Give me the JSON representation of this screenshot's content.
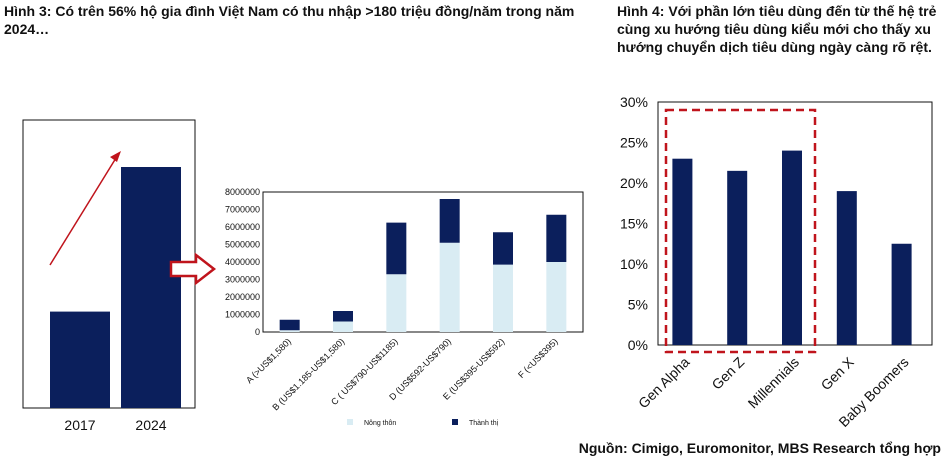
{
  "figure3": {
    "title": "Hình 3: Có trên 56% hộ gia đình Việt Nam có thu nhập >180 triệu đồng/năm trong năm 2024…"
  },
  "figure4": {
    "title": "Hình 4: Với phần lớn tiêu dùng đến từ thế hệ trẻ cùng xu hướng tiêu dùng kiểu mới cho thấy xu hướng chuyển dịch tiêu dùng ngày càng rõ rệt."
  },
  "source": "Nguồn: Cimigo, Euromonitor, MBS Research tổng hợp",
  "colors": {
    "navy": "#0b1f5c",
    "light": "#d9ecf3",
    "red": "#c0141c"
  },
  "chart_data": [
    {
      "type": "bar",
      "categories": [
        "2017",
        "2024"
      ],
      "values": [
        0.4,
        1.0
      ],
      "note_visual": "relative heights only, no axis printed; red arrow indicates growth",
      "color": "#0b1f5c"
    },
    {
      "type": "bar",
      "stacked": true,
      "categories": [
        "A (>US$1,580)",
        "B (US$1.185-US$1,580)",
        "C ( US$790-US$1185)",
        "D (US$592-US$790)",
        "E (US$395-US$592)",
        "F (<US$395)"
      ],
      "series": [
        {
          "name": "Nông thôn",
          "color": "#d9ecf3",
          "values": [
            100000,
            600000,
            3300000,
            5100000,
            3850000,
            4000000
          ]
        },
        {
          "name": "Thành thị",
          "color": "#0b1f5c",
          "values": [
            600000,
            600000,
            2950000,
            2500000,
            1850000,
            2700000
          ]
        }
      ],
      "ylim": [
        0,
        8000000
      ],
      "yticks": [
        "0",
        "1000000",
        "2000000",
        "3000000",
        "4000000",
        "5000000",
        "6000000",
        "7000000",
        "8000000"
      ],
      "legend": "bottom",
      "grid": false
    },
    {
      "type": "bar",
      "categories": [
        "Gen Alpha",
        "Gen Z",
        "Millennials",
        "Gen X",
        "Baby Boomers"
      ],
      "values": [
        23,
        21.5,
        24,
        19,
        12.5
      ],
      "ylim": [
        0,
        30
      ],
      "yticks": [
        "0%",
        "5%",
        "10%",
        "15%",
        "20%",
        "25%",
        "30%"
      ],
      "highlight": [
        "Gen Alpha",
        "Gen Z",
        "Millennials"
      ],
      "grid": false,
      "color": "#0b1f5c"
    }
  ]
}
